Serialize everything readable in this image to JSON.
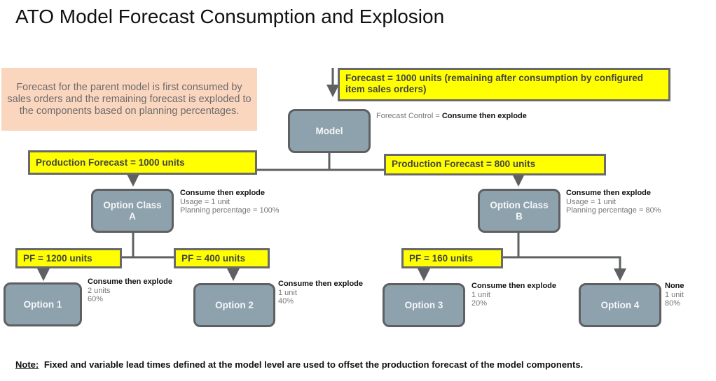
{
  "title": "ATO Model Forecast Consumption and Explosion",
  "callout": "Forecast for the parent model is first consumed by sales orders and the remaining forecast is exploded to the components based on planning percentages.",
  "top_forecast": "Forecast = 1000 units (remaining after consumption by configured item sales orders)",
  "model": {
    "label": "Model",
    "control_label": "Forecast Control =",
    "control_value": "Consume then explode"
  },
  "pf_a": "Production Forecast = 1000 units",
  "pf_b": "Production Forecast = 800 units",
  "class_a": {
    "label": "Option Class A",
    "control": "Consume then explode",
    "usage": "Usage = 1 unit",
    "pct": "Planning percentage = 100%"
  },
  "class_b": {
    "label": "Option Class B",
    "control": "Consume then explode",
    "usage": "Usage = 1 unit",
    "pct": "Planning percentage = 80%"
  },
  "pf_opt1": "PF = 1200 units",
  "pf_opt2": "PF = 400 units",
  "pf_opt3": "PF = 160 units",
  "options": [
    {
      "label": "Option 1",
      "control": "Consume then explode",
      "usage": "2 units",
      "pct": "60%"
    },
    {
      "label": "Option 2",
      "control": "Consume then explode",
      "usage": "1 unit",
      "pct": "40%"
    },
    {
      "label": "Option 3",
      "control": "Consume then explode",
      "usage": "1 unit",
      "pct": "20%"
    },
    {
      "label": "Option 4",
      "control": "None",
      "usage": "1 unit",
      "pct": "80%"
    }
  ],
  "note": {
    "label": "Note:",
    "text": "Fixed and variable lead times defined at the model level are used to offset the production forecast of the model components."
  }
}
